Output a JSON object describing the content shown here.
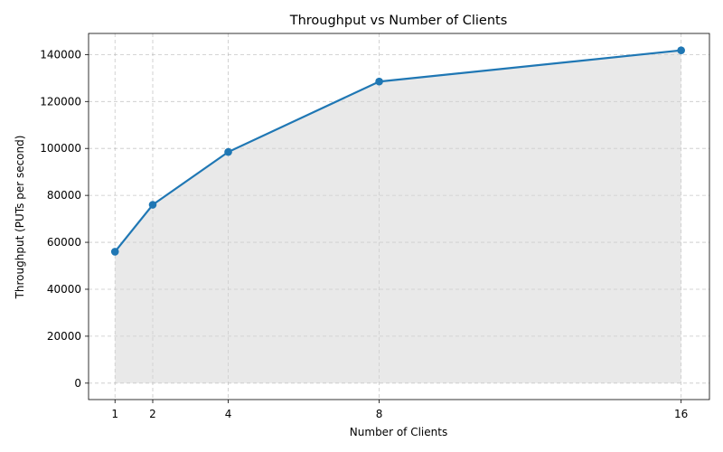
{
  "chart_data": {
    "type": "line",
    "title": "Throughput vs Number of Clients",
    "xlabel": "Number of Clients",
    "ylabel": "Throughput (PUTs per second)",
    "x": [
      1,
      2,
      4,
      8,
      16
    ],
    "x_tick_labels": [
      "1",
      "2",
      "4",
      "8",
      "16"
    ],
    "y_tick_labels": [
      "0",
      "20000",
      "40000",
      "60000",
      "80000",
      "100000",
      "120000",
      "140000"
    ],
    "y_ticks": [
      0,
      20000,
      40000,
      60000,
      80000,
      100000,
      120000,
      140000
    ],
    "xlim": [
      0.3,
      16.75
    ],
    "ylim": [
      -7000,
      149000
    ],
    "series": [
      {
        "values": [
          56000,
          76000,
          98500,
          128500,
          141800
        ],
        "color": "#1f77b4",
        "marker": "circle",
        "fill_under": true,
        "fill_color": "#d3d3d3"
      }
    ],
    "grid": true,
    "legend": "none"
  }
}
